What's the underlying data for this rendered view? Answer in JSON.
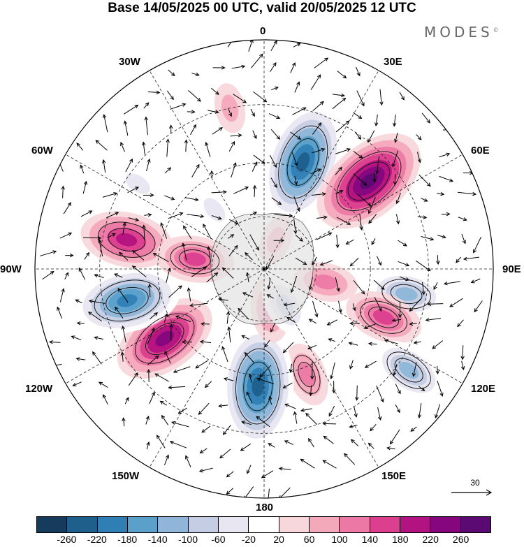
{
  "title": "Base 14/05/2025 00 UTC, valid 20/05/2025 12 UTC",
  "brand": "MODES",
  "brand_mark": "©",
  "longitude_labels": {
    "top": "0",
    "top_left": "30W",
    "top_right": "30E",
    "upper_left": "60W",
    "upper_right": "60E",
    "left": "90W",
    "right": "90E",
    "lower_left": "120W",
    "lower_right": "120E",
    "bottom_left": "150W",
    "bottom_right": "150E",
    "bottom": "180"
  },
  "reference_vector": {
    "label": "30"
  },
  "colorbar": {
    "colors": [
      "#173b5c",
      "#1e5f8c",
      "#2f7fb5",
      "#5aa0cb",
      "#8fb6d8",
      "#c4cde3",
      "#e8e6f1",
      "#ffffff",
      "#f8d7dc",
      "#f4a9bb",
      "#ec79a5",
      "#dc3f8e",
      "#b31381",
      "#85067d",
      "#5c0a73"
    ],
    "tick_labels": [
      "-260",
      "-220",
      "-180",
      "-140",
      "-100",
      "-60",
      "-20",
      "20",
      "60",
      "100",
      "140",
      "180",
      "220",
      "260"
    ]
  },
  "anomaly_centers": [
    {
      "name": "trough-30E",
      "value": -240,
      "lon": 20,
      "colat": 32
    },
    {
      "name": "ridge-60E",
      "value": 240,
      "lon": 50,
      "colat": 38
    },
    {
      "name": "trough-90E",
      "value": -150,
      "lon": 100,
      "colat": 40
    },
    {
      "name": "ridge-100E",
      "value": 80,
      "lon": 102,
      "colat": 18
    },
    {
      "name": "ridge-110E",
      "value": 150,
      "lon": 112,
      "colat": 36
    },
    {
      "name": "trough-130E",
      "value": -140,
      "lon": 125,
      "colat": 48
    },
    {
      "name": "ridge-150E",
      "value": 110,
      "lon": 158,
      "colat": 32
    },
    {
      "name": "trough-180",
      "value": -240,
      "lon": -177,
      "colat": 33
    },
    {
      "name": "ridge-130W",
      "value": 230,
      "lon": -125,
      "colat": 34
    },
    {
      "name": "trough-105W",
      "value": -230,
      "lon": -103,
      "colat": 39
    },
    {
      "name": "ridge-80W",
      "value": 160,
      "lon": -78,
      "colat": 39
    },
    {
      "name": "ridge-85W",
      "value": 140,
      "lon": -82,
      "colat": 20
    },
    {
      "name": "trough-60W",
      "value": -70,
      "lon": -56,
      "colat": 42
    },
    {
      "name": "ridge-15W",
      "value": 70,
      "lon": -12,
      "colat": 45
    },
    {
      "name": "ridge-20E",
      "value": 40,
      "lon": 22,
      "colat": 9
    },
    {
      "name": "trough-30W",
      "value": -50,
      "lon": -40,
      "colat": 22
    },
    {
      "name": "ridge-170E",
      "value": 80,
      "lon": 172,
      "colat": 12
    },
    {
      "name": "trough-160E",
      "value": -90,
      "lon": 150,
      "colat": 12
    }
  ]
}
